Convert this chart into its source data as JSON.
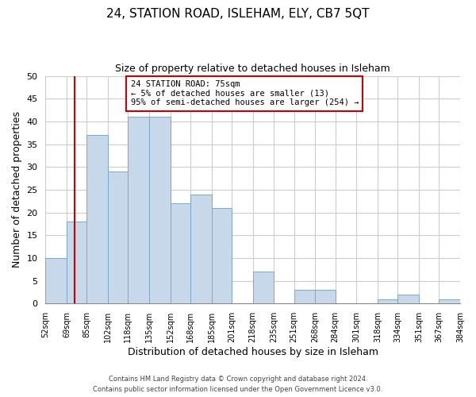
{
  "title": "24, STATION ROAD, ISLEHAM, ELY, CB7 5QT",
  "subtitle": "Size of property relative to detached houses in Isleham",
  "xlabel": "Distribution of detached houses by size in Isleham",
  "ylabel": "Number of detached properties",
  "bar_color": "#c8d8eb",
  "bar_edge_color": "#7aaac8",
  "bins": [
    52,
    69,
    85,
    102,
    118,
    135,
    152,
    168,
    185,
    201,
    218,
    235,
    251,
    268,
    284,
    301,
    318,
    334,
    351,
    367,
    384
  ],
  "counts": [
    10,
    18,
    37,
    29,
    41,
    41,
    22,
    24,
    21,
    0,
    7,
    0,
    3,
    3,
    0,
    0,
    1,
    2,
    0,
    1
  ],
  "x_labels": [
    "52sqm",
    "69sqm",
    "85sqm",
    "102sqm",
    "118sqm",
    "135sqm",
    "152sqm",
    "168sqm",
    "185sqm",
    "201sqm",
    "218sqm",
    "235sqm",
    "251sqm",
    "268sqm",
    "284sqm",
    "301sqm",
    "318sqm",
    "334sqm",
    "351sqm",
    "367sqm",
    "384sqm"
  ],
  "ylim": [
    0,
    50
  ],
  "yticks": [
    0,
    5,
    10,
    15,
    20,
    25,
    30,
    35,
    40,
    45,
    50
  ],
  "vline_x": 75,
  "vline_color": "#cc0000",
  "annotation_title": "24 STATION ROAD: 75sqm",
  "annotation_line1": "← 5% of detached houses are smaller (13)",
  "annotation_line2": "95% of semi-detached houses are larger (254) →",
  "annotation_box_color": "#ffffff",
  "annotation_box_edgecolor": "#cc0000",
  "footer1": "Contains HM Land Registry data © Crown copyright and database right 2024.",
  "footer2": "Contains public sector information licensed under the Open Government Licence v3.0.",
  "background_color": "#ffffff",
  "grid_color": "#cccccc"
}
